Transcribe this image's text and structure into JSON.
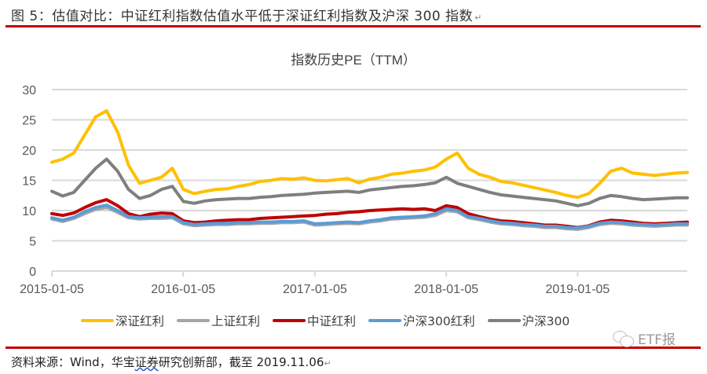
{
  "figure": {
    "title": "图 5：估值对比：中证红利指数估值水平低于深证红利指数及沪深 300 指数",
    "source": "资料来源：Wind，华宝证券研究创新部，截至 2019.11.06",
    "source_parts": [
      "资料来源：Wind，华宝",
      "证券",
      "研究创新部，截至 2019.11.06"
    ],
    "watermark": "ETF报",
    "watermark_icon": "wechat-icon",
    "paragraph_mark": "↵"
  },
  "chart_data": {
    "type": "line",
    "title": "指数历史PE（TTM）",
    "xlabel": "",
    "ylabel": "",
    "ylim": [
      0,
      30
    ],
    "yticks": [
      0,
      5,
      10,
      15,
      20,
      25,
      30
    ],
    "xticks": [
      "2015-01-05",
      "2016-01-05",
      "2017-01-05",
      "2018-01-05",
      "2019-01-05"
    ],
    "x_range": [
      "2015-01-05",
      "2019-11-06"
    ],
    "grid": true,
    "legend_position": "bottom",
    "x": [
      "2015-01",
      "2015-02",
      "2015-03",
      "2015-04",
      "2015-05",
      "2015-06",
      "2015-07",
      "2015-08",
      "2015-09",
      "2015-10",
      "2015-11",
      "2015-12",
      "2016-01",
      "2016-02",
      "2016-03",
      "2016-04",
      "2016-05",
      "2016-06",
      "2016-07",
      "2016-08",
      "2016-09",
      "2016-10",
      "2016-11",
      "2016-12",
      "2017-01",
      "2017-02",
      "2017-03",
      "2017-04",
      "2017-05",
      "2017-06",
      "2017-07",
      "2017-08",
      "2017-09",
      "2017-10",
      "2017-11",
      "2017-12",
      "2018-01",
      "2018-02",
      "2018-03",
      "2018-04",
      "2018-05",
      "2018-06",
      "2018-07",
      "2018-08",
      "2018-09",
      "2018-10",
      "2018-11",
      "2018-12",
      "2019-01",
      "2019-02",
      "2019-03",
      "2019-04",
      "2019-05",
      "2019-06",
      "2019-07",
      "2019-08",
      "2019-09",
      "2019-10",
      "2019-11"
    ],
    "series": [
      {
        "name": "深证红利",
        "color": "#FFC000",
        "values": [
          18.0,
          18.5,
          19.5,
          22.5,
          25.5,
          26.5,
          23.0,
          17.5,
          14.5,
          15.0,
          15.5,
          17.0,
          13.5,
          12.8,
          13.2,
          13.5,
          13.6,
          14.0,
          14.3,
          14.8,
          15.0,
          15.3,
          15.2,
          15.4,
          15.0,
          14.9,
          15.1,
          15.3,
          14.6,
          15.2,
          15.5,
          16.0,
          16.2,
          16.5,
          16.7,
          17.2,
          18.5,
          19.5,
          17.0,
          16.0,
          15.5,
          14.8,
          14.6,
          14.2,
          13.8,
          13.4,
          13.0,
          12.5,
          12.2,
          12.8,
          14.5,
          16.5,
          17.0,
          16.2,
          16.0,
          15.8,
          16.0,
          16.2,
          16.3
        ]
      },
      {
        "name": "上证红利",
        "color": "#A5A5A5",
        "values": [
          8.6,
          8.2,
          8.7,
          9.5,
          10.2,
          10.5,
          9.7,
          8.8,
          8.6,
          8.7,
          8.7,
          8.8,
          7.8,
          7.5,
          7.6,
          7.7,
          7.7,
          7.8,
          7.8,
          7.9,
          7.9,
          8.0,
          8.0,
          8.1,
          7.6,
          7.7,
          7.8,
          7.9,
          7.8,
          8.1,
          8.3,
          8.6,
          8.7,
          8.8,
          8.9,
          9.2,
          10.0,
          9.8,
          8.8,
          8.5,
          8.1,
          7.8,
          7.7,
          7.5,
          7.4,
          7.2,
          7.2,
          7.0,
          6.9,
          7.2,
          7.7,
          7.9,
          7.8,
          7.6,
          7.5,
          7.4,
          7.5,
          7.6,
          7.6
        ]
      },
      {
        "name": "中证红利",
        "color": "#C00000",
        "values": [
          9.5,
          9.2,
          9.6,
          10.5,
          11.3,
          11.8,
          10.8,
          9.5,
          9.0,
          9.4,
          9.6,
          9.5,
          8.3,
          8.0,
          8.1,
          8.3,
          8.4,
          8.5,
          8.5,
          8.7,
          8.8,
          8.9,
          9.0,
          9.1,
          9.2,
          9.4,
          9.5,
          9.7,
          9.8,
          10.0,
          10.1,
          10.2,
          10.3,
          10.2,
          10.3,
          10.0,
          10.8,
          10.5,
          9.5,
          9.0,
          8.6,
          8.3,
          8.2,
          8.0,
          7.8,
          7.6,
          7.6,
          7.4,
          7.2,
          7.5,
          8.1,
          8.4,
          8.3,
          8.1,
          7.9,
          7.8,
          7.9,
          8.0,
          8.1
        ]
      },
      {
        "name": "沪深300红利",
        "color": "#5B9BD5",
        "values": [
          8.8,
          8.4,
          8.9,
          9.8,
          10.5,
          10.9,
          10.0,
          9.0,
          8.8,
          8.9,
          9.0,
          9.0,
          8.0,
          7.7,
          7.8,
          7.9,
          7.9,
          8.0,
          8.0,
          8.1,
          8.1,
          8.2,
          8.2,
          8.3,
          7.8,
          7.9,
          8.0,
          8.1,
          8.0,
          8.3,
          8.5,
          8.8,
          8.9,
          9.0,
          9.1,
          9.5,
          10.3,
          10.0,
          9.0,
          8.7,
          8.3,
          8.0,
          7.9,
          7.7,
          7.6,
          7.4,
          7.4,
          7.2,
          7.1,
          7.4,
          7.9,
          8.1,
          8.0,
          7.8,
          7.7,
          7.6,
          7.7,
          7.8,
          7.8
        ]
      },
      {
        "name": "沪深300",
        "color": "#7F7F7F",
        "values": [
          13.2,
          12.4,
          13.0,
          15.0,
          17.0,
          18.5,
          16.5,
          13.5,
          12.0,
          12.5,
          13.5,
          14.0,
          11.5,
          11.2,
          11.6,
          11.8,
          11.9,
          12.0,
          12.0,
          12.2,
          12.3,
          12.5,
          12.6,
          12.7,
          12.9,
          13.0,
          13.1,
          13.2,
          13.0,
          13.4,
          13.6,
          13.8,
          14.0,
          14.1,
          14.3,
          14.6,
          15.5,
          14.5,
          14.0,
          13.5,
          13.0,
          12.6,
          12.4,
          12.2,
          12.0,
          11.8,
          11.6,
          11.2,
          10.8,
          11.2,
          12.0,
          12.5,
          12.3,
          12.0,
          11.8,
          11.9,
          12.0,
          12.1,
          12.1
        ]
      }
    ]
  }
}
